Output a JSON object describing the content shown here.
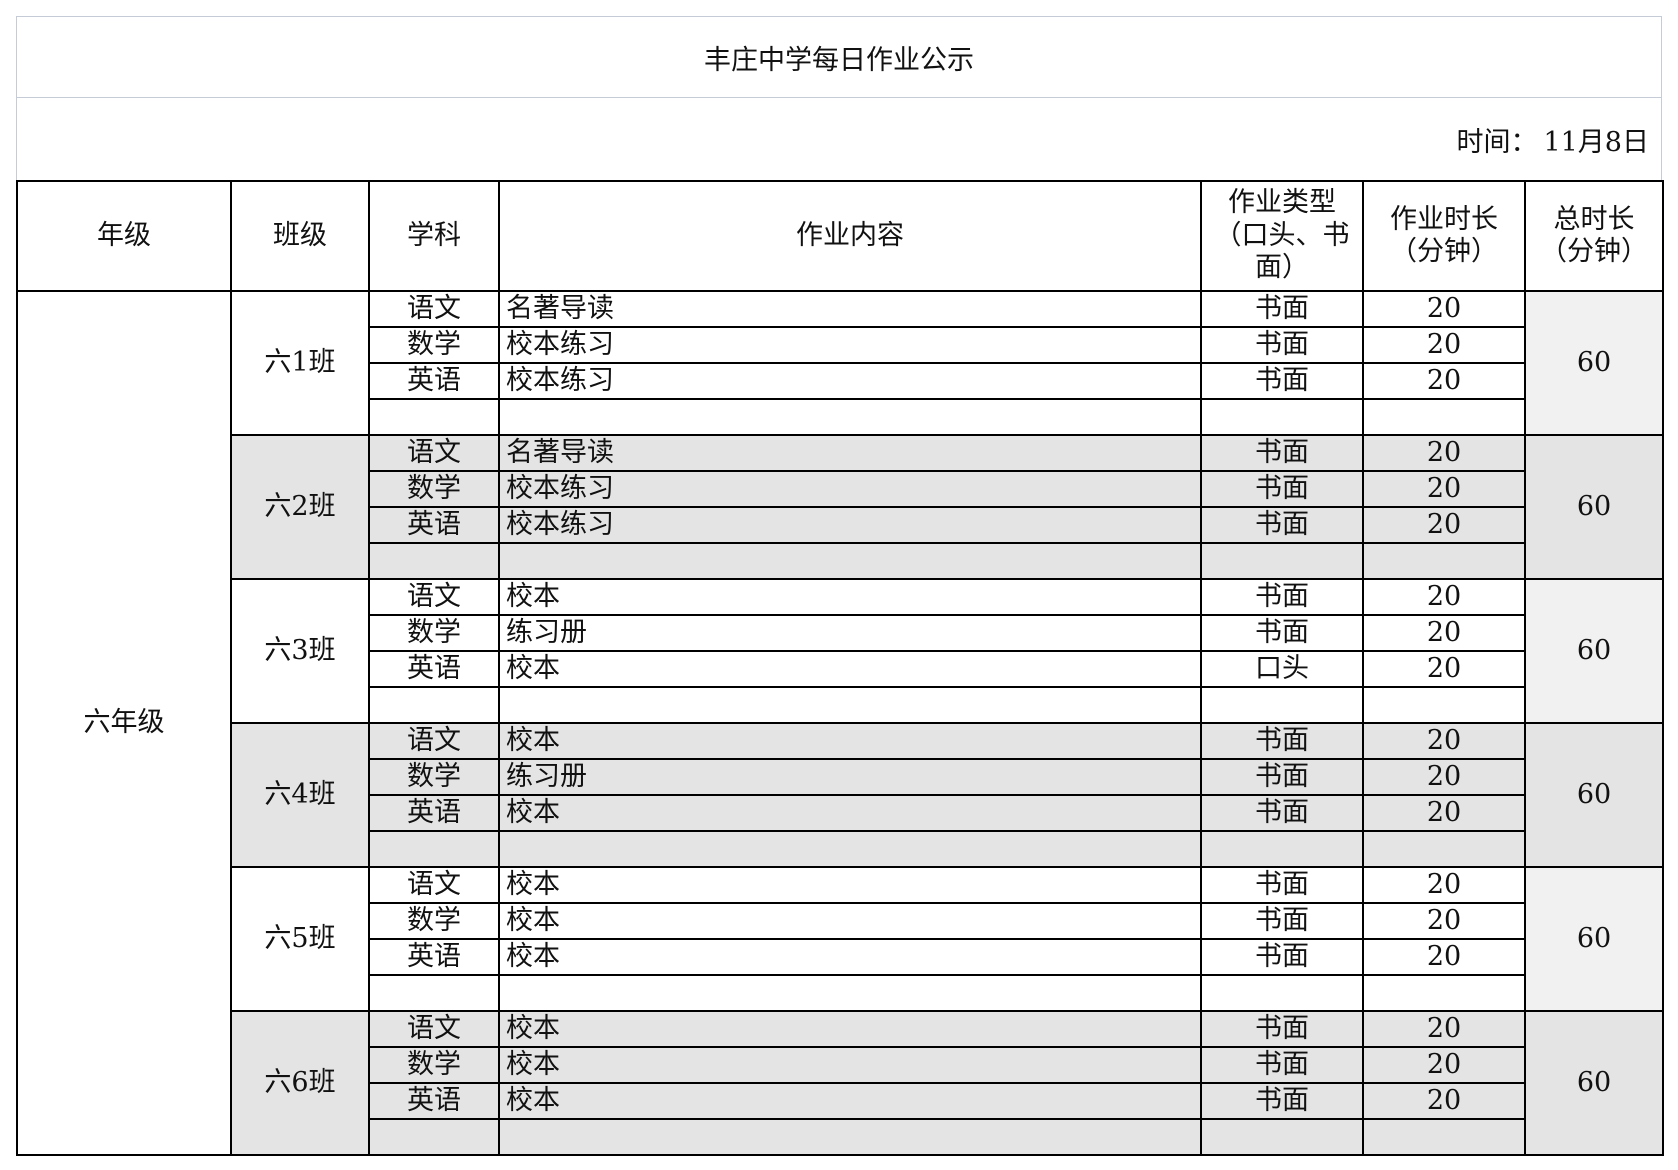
{
  "title": "丰庄中学每日作业公示",
  "time_label": "时间：",
  "date": "11月8日",
  "headers": {
    "grade": "年级",
    "class": "班级",
    "subject": "学科",
    "content": "作业内容",
    "type": "作业类型（口头、书面）",
    "duration": "作业时长（分钟）",
    "total": "总时长（分钟）"
  },
  "grade": "六年级",
  "classes": [
    {
      "name": "六1班",
      "total": "60",
      "rows": [
        {
          "subject": "语文",
          "content": "名著导读",
          "type": "书面",
          "duration": "20"
        },
        {
          "subject": "数学",
          "content": "校本练习",
          "type": "书面",
          "duration": "20"
        },
        {
          "subject": "英语",
          "content": "校本练习",
          "type": "书面",
          "duration": "20"
        },
        {
          "subject": "",
          "content": "",
          "type": "",
          "duration": ""
        }
      ]
    },
    {
      "name": "六2班",
      "total": "60",
      "rows": [
        {
          "subject": "语文",
          "content": "名著导读",
          "type": "书面",
          "duration": "20"
        },
        {
          "subject": "数学",
          "content": "校本练习",
          "type": "书面",
          "duration": "20"
        },
        {
          "subject": "英语",
          "content": "校本练习",
          "type": "书面",
          "duration": "20"
        },
        {
          "subject": "",
          "content": "",
          "type": "",
          "duration": ""
        }
      ]
    },
    {
      "name": "六3班",
      "total": "60",
      "rows": [
        {
          "subject": "语文",
          "content": "校本",
          "type": "书面",
          "duration": "20"
        },
        {
          "subject": "数学",
          "content": "练习册",
          "type": "书面",
          "duration": "20"
        },
        {
          "subject": "英语",
          "content": "校本",
          "type": "口头",
          "duration": "20"
        },
        {
          "subject": "",
          "content": "",
          "type": "",
          "duration": ""
        }
      ]
    },
    {
      "name": "六4班",
      "total": "60",
      "rows": [
        {
          "subject": "语文",
          "content": "校本",
          "type": "书面",
          "duration": "20"
        },
        {
          "subject": "数学",
          "content": "练习册",
          "type": "书面",
          "duration": "20"
        },
        {
          "subject": "英语",
          "content": "校本",
          "type": "书面",
          "duration": "20"
        },
        {
          "subject": "",
          "content": "",
          "type": "",
          "duration": ""
        }
      ]
    },
    {
      "name": "六5班",
      "total": "60",
      "rows": [
        {
          "subject": "语文",
          "content": "校本",
          "type": "书面",
          "duration": "20"
        },
        {
          "subject": "数学",
          "content": "校本",
          "type": "书面",
          "duration": "20"
        },
        {
          "subject": "英语",
          "content": "校本",
          "type": "书面",
          "duration": "20"
        },
        {
          "subject": "",
          "content": "",
          "type": "",
          "duration": ""
        }
      ]
    },
    {
      "name": "六6班",
      "total": "60",
      "rows": [
        {
          "subject": "语文",
          "content": "校本",
          "type": "书面",
          "duration": "20"
        },
        {
          "subject": "数学",
          "content": "校本",
          "type": "书面",
          "duration": "20"
        },
        {
          "subject": "英语",
          "content": "校本",
          "type": "书面",
          "duration": "20"
        },
        {
          "subject": "",
          "content": "",
          "type": "",
          "duration": ""
        }
      ]
    }
  ],
  "colors": {
    "shaded_row": "#e4e4e4",
    "border": "#000000",
    "band_border": "#c5ccd8"
  }
}
